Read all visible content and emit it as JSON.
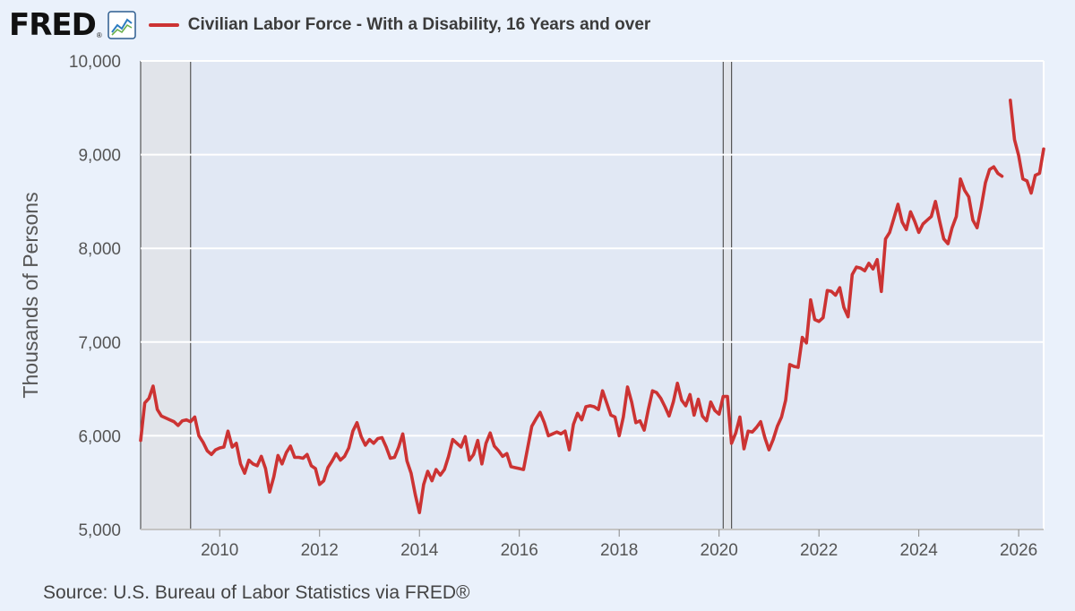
{
  "header": {
    "logo_text": "FRED",
    "logo_mark": "®",
    "logo_icon": "line-chart-icon"
  },
  "footer": {
    "source": "Source: U.S. Bureau of Labor Statistics via FRED®"
  },
  "colors": {
    "series": "#cc3333",
    "plot_background": "#e1e8f4",
    "recession_shade": "#e1e4ea",
    "page_background": "#eaf1fb"
  },
  "chart_data": {
    "type": "line",
    "title": "",
    "xlabel": "",
    "ylabel": "Thousands of Persons",
    "ylim": [
      5000,
      10000
    ],
    "xlim": [
      "2008-06",
      "2026-07"
    ],
    "grid": true,
    "legend_position": "top",
    "y_ticks": [
      "5,000",
      "6,000",
      "7,000",
      "8,000",
      "9,000",
      "10,000"
    ],
    "y_tick_values": [
      5000,
      6000,
      7000,
      8000,
      9000,
      10000
    ],
    "x_ticks": [
      "2010",
      "2012",
      "2014",
      "2016",
      "2018",
      "2020",
      "2022",
      "2024",
      "2026"
    ],
    "recessions": [
      [
        "2008-06",
        "2009-06"
      ],
      [
        "2020-02",
        "2020-04"
      ]
    ],
    "series": [
      {
        "name": "Civilian Labor Force - With a Disability, 16 Years and over",
        "color": "#cc3333",
        "segments": [
          [
            [
              "2008-06",
              5950
            ],
            [
              "2008-07",
              6350
            ],
            [
              "2008-08",
              6400
            ],
            [
              "2008-09",
              6530
            ],
            [
              "2008-10",
              6280
            ],
            [
              "2008-11",
              6210
            ],
            [
              "2008-12",
              6190
            ],
            [
              "2009-01",
              6170
            ],
            [
              "2009-02",
              6150
            ],
            [
              "2009-03",
              6110
            ],
            [
              "2009-04",
              6160
            ],
            [
              "2009-05",
              6170
            ],
            [
              "2009-06",
              6150
            ],
            [
              "2009-07",
              6200
            ],
            [
              "2009-08",
              6000
            ],
            [
              "2009-09",
              5930
            ],
            [
              "2009-10",
              5840
            ],
            [
              "2009-11",
              5800
            ],
            [
              "2009-12",
              5850
            ],
            [
              "2010-01",
              5870
            ],
            [
              "2010-02",
              5880
            ],
            [
              "2010-03",
              6050
            ],
            [
              "2010-04",
              5880
            ],
            [
              "2010-05",
              5920
            ],
            [
              "2010-06",
              5700
            ],
            [
              "2010-07",
              5600
            ],
            [
              "2010-08",
              5740
            ],
            [
              "2010-09",
              5700
            ],
            [
              "2010-10",
              5680
            ],
            [
              "2010-11",
              5780
            ],
            [
              "2010-12",
              5650
            ],
            [
              "2011-01",
              5400
            ],
            [
              "2011-02",
              5560
            ],
            [
              "2011-03",
              5790
            ],
            [
              "2011-04",
              5700
            ],
            [
              "2011-05",
              5820
            ],
            [
              "2011-06",
              5890
            ],
            [
              "2011-07",
              5770
            ],
            [
              "2011-08",
              5770
            ],
            [
              "2011-09",
              5760
            ],
            [
              "2011-10",
              5800
            ],
            [
              "2011-11",
              5680
            ],
            [
              "2011-12",
              5650
            ],
            [
              "2012-01",
              5480
            ],
            [
              "2012-02",
              5520
            ],
            [
              "2012-03",
              5660
            ],
            [
              "2012-04",
              5730
            ],
            [
              "2012-05",
              5810
            ],
            [
              "2012-06",
              5740
            ],
            [
              "2012-07",
              5780
            ],
            [
              "2012-08",
              5870
            ],
            [
              "2012-09",
              6050
            ],
            [
              "2012-10",
              6140
            ],
            [
              "2012-11",
              5990
            ],
            [
              "2012-12",
              5900
            ],
            [
              "2013-01",
              5960
            ],
            [
              "2013-02",
              5920
            ],
            [
              "2013-03",
              5970
            ],
            [
              "2013-04",
              5980
            ],
            [
              "2013-05",
              5880
            ],
            [
              "2013-06",
              5760
            ],
            [
              "2013-07",
              5770
            ],
            [
              "2013-08",
              5880
            ],
            [
              "2013-09",
              6020
            ],
            [
              "2013-10",
              5730
            ],
            [
              "2013-11",
              5600
            ],
            [
              "2013-12",
              5370
            ],
            [
              "2014-01",
              5180
            ],
            [
              "2014-02",
              5480
            ],
            [
              "2014-03",
              5620
            ],
            [
              "2014-04",
              5520
            ],
            [
              "2014-05",
              5640
            ],
            [
              "2014-06",
              5580
            ],
            [
              "2014-07",
              5640
            ],
            [
              "2014-08",
              5780
            ],
            [
              "2014-09",
              5960
            ],
            [
              "2014-10",
              5920
            ],
            [
              "2014-11",
              5880
            ],
            [
              "2014-12",
              5990
            ],
            [
              "2015-01",
              5740
            ],
            [
              "2015-02",
              5800
            ],
            [
              "2015-03",
              5950
            ],
            [
              "2015-04",
              5700
            ],
            [
              "2015-05",
              5920
            ],
            [
              "2015-06",
              6030
            ],
            [
              "2015-07",
              5890
            ],
            [
              "2015-08",
              5840
            ],
            [
              "2015-09",
              5780
            ],
            [
              "2015-10",
              5810
            ],
            [
              "2015-11",
              5670
            ],
            [
              "2015-12",
              5660
            ],
            [
              "2016-01",
              5650
            ],
            [
              "2016-02",
              5640
            ],
            [
              "2016-03",
              5870
            ],
            [
              "2016-04",
              6100
            ],
            [
              "2016-05",
              6180
            ],
            [
              "2016-06",
              6250
            ],
            [
              "2016-07",
              6140
            ],
            [
              "2016-08",
              6000
            ],
            [
              "2016-09",
              6020
            ],
            [
              "2016-10",
              6040
            ],
            [
              "2016-11",
              6020
            ],
            [
              "2016-12",
              6050
            ],
            [
              "2017-01",
              5850
            ],
            [
              "2017-02",
              6120
            ],
            [
              "2017-03",
              6240
            ],
            [
              "2017-04",
              6170
            ],
            [
              "2017-05",
              6310
            ],
            [
              "2017-06",
              6320
            ],
            [
              "2017-07",
              6310
            ],
            [
              "2017-08",
              6280
            ],
            [
              "2017-09",
              6480
            ],
            [
              "2017-10",
              6350
            ],
            [
              "2017-11",
              6220
            ],
            [
              "2017-12",
              6200
            ],
            [
              "2018-01",
              6000
            ],
            [
              "2018-02",
              6200
            ],
            [
              "2018-03",
              6520
            ],
            [
              "2018-04",
              6360
            ],
            [
              "2018-05",
              6140
            ],
            [
              "2018-06",
              6160
            ],
            [
              "2018-07",
              6060
            ],
            [
              "2018-08",
              6280
            ],
            [
              "2018-09",
              6480
            ],
            [
              "2018-10",
              6460
            ],
            [
              "2018-11",
              6400
            ],
            [
              "2018-12",
              6310
            ],
            [
              "2019-01",
              6210
            ],
            [
              "2019-02",
              6360
            ],
            [
              "2019-03",
              6560
            ],
            [
              "2019-04",
              6380
            ],
            [
              "2019-05",
              6320
            ],
            [
              "2019-06",
              6440
            ],
            [
              "2019-07",
              6220
            ],
            [
              "2019-08",
              6390
            ],
            [
              "2019-09",
              6210
            ],
            [
              "2019-10",
              6160
            ],
            [
              "2019-11",
              6360
            ],
            [
              "2019-12",
              6270
            ],
            [
              "2020-01",
              6230
            ],
            [
              "2020-02",
              6420
            ],
            [
              "2020-03",
              6420
            ],
            [
              "2020-04",
              5920
            ],
            [
              "2020-05",
              6030
            ],
            [
              "2020-06",
              6200
            ],
            [
              "2020-07",
              5860
            ],
            [
              "2020-08",
              6050
            ],
            [
              "2020-09",
              6040
            ],
            [
              "2020-10",
              6090
            ],
            [
              "2020-11",
              6150
            ],
            [
              "2020-12",
              5980
            ],
            [
              "2021-01",
              5850
            ],
            [
              "2021-02",
              5960
            ],
            [
              "2021-03",
              6100
            ],
            [
              "2021-04",
              6200
            ],
            [
              "2021-05",
              6380
            ],
            [
              "2021-06",
              6760
            ],
            [
              "2021-07",
              6740
            ],
            [
              "2021-08",
              6730
            ],
            [
              "2021-09",
              7050
            ],
            [
              "2021-10",
              6990
            ],
            [
              "2021-11",
              7450
            ],
            [
              "2021-12",
              7240
            ],
            [
              "2022-01",
              7220
            ],
            [
              "2022-02",
              7260
            ],
            [
              "2022-03",
              7550
            ],
            [
              "2022-04",
              7540
            ],
            [
              "2022-05",
              7500
            ],
            [
              "2022-06",
              7580
            ],
            [
              "2022-07",
              7370
            ],
            [
              "2022-08",
              7270
            ],
            [
              "2022-09",
              7720
            ],
            [
              "2022-10",
              7800
            ],
            [
              "2022-11",
              7790
            ],
            [
              "2022-12",
              7760
            ],
            [
              "2023-01",
              7840
            ],
            [
              "2023-02",
              7780
            ],
            [
              "2023-03",
              7880
            ],
            [
              "2023-04",
              7540
            ],
            [
              "2023-05",
              8100
            ],
            [
              "2023-06",
              8170
            ],
            [
              "2023-07",
              8320
            ],
            [
              "2023-08",
              8470
            ],
            [
              "2023-09",
              8280
            ],
            [
              "2023-10",
              8200
            ],
            [
              "2023-11",
              8390
            ],
            [
              "2023-12",
              8290
            ],
            [
              "2024-01",
              8170
            ],
            [
              "2024-02",
              8260
            ],
            [
              "2024-03",
              8300
            ],
            [
              "2024-04",
              8340
            ],
            [
              "2024-05",
              8500
            ],
            [
              "2024-06",
              8290
            ],
            [
              "2024-07",
              8100
            ],
            [
              "2024-08",
              8050
            ],
            [
              "2024-09",
              8220
            ],
            [
              "2024-10",
              8340
            ],
            [
              "2024-11",
              8740
            ],
            [
              "2024-12",
              8620
            ],
            [
              "2025-01",
              8550
            ],
            [
              "2025-02",
              8300
            ],
            [
              "2025-03",
              8220
            ],
            [
              "2025-04",
              8440
            ],
            [
              "2025-05",
              8700
            ],
            [
              "2025-06",
              8840
            ],
            [
              "2025-07",
              8870
            ],
            [
              "2025-08",
              8800
            ],
            [
              "2025-09",
              8770
            ]
          ],
          [
            [
              "2025-11",
              9580
            ],
            [
              "2025-12",
              9160
            ],
            [
              "2026-01",
              8990
            ],
            [
              "2026-02",
              8740
            ],
            [
              "2026-03",
              8720
            ],
            [
              "2026-04",
              8590
            ],
            [
              "2026-05",
              8780
            ],
            [
              "2026-06",
              8800
            ],
            [
              "2026-07",
              9060
            ]
          ]
        ]
      }
    ]
  }
}
